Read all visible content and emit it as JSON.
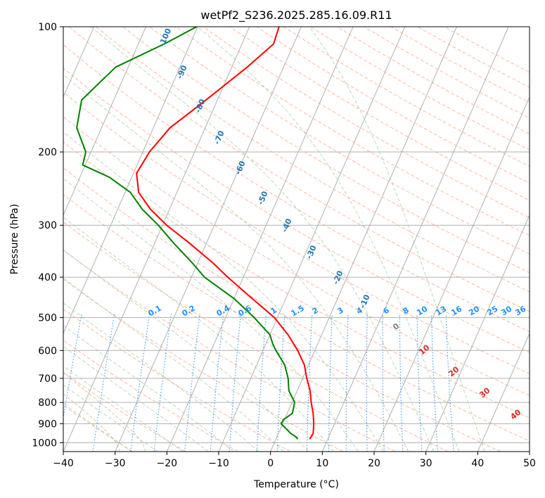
{
  "chart_data": {
    "type": "skew-t",
    "title": "wetPf2_S236.2025.285.16.09.R11",
    "xlabel": "Temperature (°C)",
    "ylabel": "Pressure (hPa)",
    "xlim": [
      -40,
      50
    ],
    "ylim": [
      1050,
      100
    ],
    "x_ticks": [
      -40,
      -30,
      -20,
      -10,
      0,
      10,
      20,
      30,
      40,
      50
    ],
    "x_tick_labels": [
      "−40",
      "−30",
      "−20",
      "−10",
      "0",
      "10",
      "20",
      "30",
      "40",
      "50"
    ],
    "y_ticks": [
      100,
      200,
      300,
      400,
      500,
      600,
      700,
      800,
      900,
      1000
    ],
    "y_tick_labels": [
      "100",
      "200",
      "300",
      "400",
      "500",
      "600",
      "700",
      "800",
      "900",
      "1000"
    ],
    "colors": {
      "temperature": "#ff0000",
      "dewpoint": "#008000",
      "grid": "#b0b0b0",
      "isotherm_label": "#1f77b4",
      "mixing_ratio": "#1e90ff",
      "dry_adiabat": "#ffa07a",
      "moist_adiabat": "#8fbc8f",
      "zero_isotherm": "#808080",
      "warm_isotherm_label": "#d62728",
      "dgz_curve": "#d2b48c"
    },
    "series": [
      {
        "name": "Temperature",
        "points": [
          [
            100,
            -34.3
          ],
          [
            110,
            -33.9
          ],
          [
            125,
            -37.0
          ],
          [
            150,
            -42.2
          ],
          [
            175,
            -46.8
          ],
          [
            200,
            -48.7
          ],
          [
            225,
            -49.4
          ],
          [
            250,
            -47.4
          ],
          [
            275,
            -43.6
          ],
          [
            300,
            -39.2
          ],
          [
            330,
            -33.5
          ],
          [
            370,
            -27.0
          ],
          [
            400,
            -23.0
          ],
          [
            450,
            -16.5
          ],
          [
            500,
            -10.6
          ],
          [
            550,
            -6.5
          ],
          [
            600,
            -3.3
          ],
          [
            650,
            -0.8
          ],
          [
            700,
            0.8
          ],
          [
            750,
            2.5
          ],
          [
            800,
            3.7
          ],
          [
            850,
            5.0
          ],
          [
            900,
            6.0
          ],
          [
            950,
            6.7
          ],
          [
            980,
            6.5
          ]
        ]
      },
      {
        "name": "Dewpoint",
        "points": [
          [
            100,
            -50.2
          ],
          [
            110,
            -55.0
          ],
          [
            125,
            -62.4
          ],
          [
            150,
            -66.2
          ],
          [
            175,
            -64.8
          ],
          [
            200,
            -61.0
          ],
          [
            215,
            -60.5
          ],
          [
            230,
            -54.3
          ],
          [
            250,
            -49.0
          ],
          [
            275,
            -45.2
          ],
          [
            300,
            -40.8
          ],
          [
            330,
            -36.5
          ],
          [
            370,
            -31.0
          ],
          [
            400,
            -27.5
          ],
          [
            450,
            -20.0
          ],
          [
            500,
            -14.5
          ],
          [
            550,
            -10.0
          ],
          [
            580,
            -8.6
          ],
          [
            600,
            -7.5
          ],
          [
            650,
            -4.6
          ],
          [
            700,
            -2.8
          ],
          [
            750,
            -1.6
          ],
          [
            800,
            0.5
          ],
          [
            850,
            1.0
          ],
          [
            880,
            -0.2
          ],
          [
            900,
            -0.3
          ],
          [
            950,
            2.4
          ],
          [
            970,
            3.8
          ],
          [
            980,
            4.2
          ]
        ]
      }
    ],
    "isotherm_labels": [
      "-100",
      "-90",
      "-80",
      "-70",
      "-60",
      "-50",
      "-40",
      "-30",
      "-20",
      "-10"
    ],
    "mixing_ratio_labels": [
      "0.1",
      "0.2",
      "0.4",
      "0.6",
      "1",
      "1.5",
      "2",
      "3",
      "4",
      "6",
      "8",
      "10",
      "13",
      "16",
      "20",
      "25",
      "30",
      "36"
    ],
    "warm_isotherm_labels": [
      "0",
      "10",
      "20",
      "30",
      "40"
    ]
  }
}
